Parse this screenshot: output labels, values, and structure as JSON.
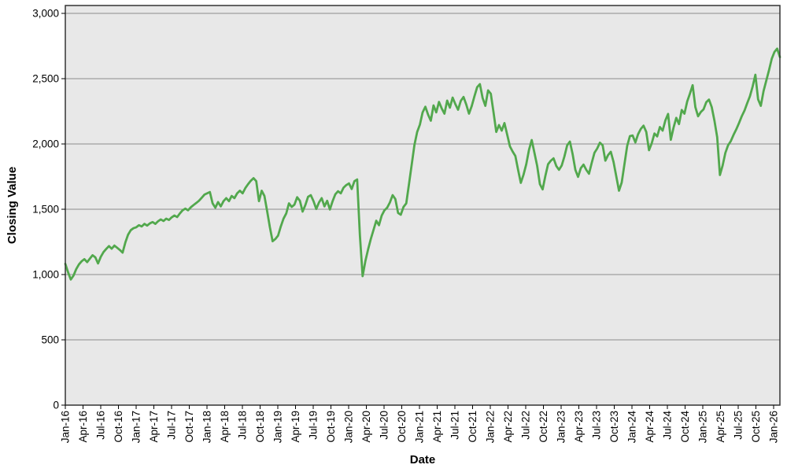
{
  "chart_data": {
    "type": "line",
    "title": "",
    "xlabel": "Date",
    "ylabel": "Closing Value",
    "series_name": "Closing Value",
    "line_color": "#52a84d",
    "plot_bg_color": "#e8e8e8",
    "gridline_color": "#8c8c8c",
    "border_color": "#333333",
    "grid": "horizontal-only",
    "legend": "none",
    "ylim": [
      0,
      3000
    ],
    "y_ticks": [
      0,
      500,
      1000,
      1500,
      2000,
      2500,
      3000
    ],
    "y_tick_labels": [
      "0",
      "500",
      "1,000",
      "1,500",
      "2,000",
      "2,500",
      "3,000"
    ],
    "x_tick_labels": [
      "Jan-16",
      "Apr-16",
      "Jul-16",
      "Oct-16",
      "Jan-17",
      "Apr-17",
      "Jul-17",
      "Oct-17",
      "Jan-18",
      "Apr-18",
      "Jul-18",
      "Oct-18",
      "Jan-19",
      "Apr-19",
      "Jul-19",
      "Oct-19",
      "Jan-20",
      "Apr-20",
      "Jul-20",
      "Oct-20",
      "Jan-21",
      "Apr-21",
      "Jul-21",
      "Oct-21",
      "Jan-22",
      "Apr-22",
      "Jul-22",
      "Oct-22",
      "Jan-23",
      "Apr-23",
      "Jul-23",
      "Oct-23",
      "Jan-24",
      "Apr-24",
      "Jul-24",
      "Oct-24",
      "Jan-25",
      "Apr-25",
      "Jul-25",
      "Oct-25",
      "Jan-26"
    ],
    "x_start": "Jan-2016",
    "x_end": "Feb-2026",
    "points_per_year": 26,
    "sampling": "biweekly-approx",
    "values": [
      1082,
      1018,
      962,
      992,
      1042,
      1078,
      1102,
      1118,
      1095,
      1122,
      1148,
      1132,
      1085,
      1136,
      1172,
      1196,
      1218,
      1198,
      1222,
      1205,
      1188,
      1168,
      1245,
      1305,
      1340,
      1355,
      1362,
      1378,
      1368,
      1388,
      1375,
      1392,
      1402,
      1388,
      1408,
      1422,
      1410,
      1428,
      1418,
      1438,
      1452,
      1440,
      1468,
      1492,
      1505,
      1492,
      1515,
      1532,
      1548,
      1565,
      1588,
      1612,
      1622,
      1632,
      1545,
      1512,
      1555,
      1522,
      1562,
      1585,
      1562,
      1602,
      1585,
      1622,
      1642,
      1622,
      1662,
      1692,
      1718,
      1738,
      1715,
      1562,
      1642,
      1602,
      1485,
      1362,
      1255,
      1272,
      1298,
      1368,
      1428,
      1468,
      1545,
      1518,
      1535,
      1592,
      1565,
      1482,
      1532,
      1595,
      1608,
      1562,
      1502,
      1552,
      1585,
      1522,
      1565,
      1498,
      1562,
      1615,
      1638,
      1622,
      1665,
      1685,
      1698,
      1655,
      1715,
      1728,
      1302,
      988,
      1102,
      1192,
      1272,
      1342,
      1412,
      1378,
      1452,
      1492,
      1512,
      1552,
      1608,
      1578,
      1472,
      1458,
      1518,
      1545,
      1692,
      1842,
      1992,
      2092,
      2148,
      2242,
      2285,
      2225,
      2178,
      2295,
      2242,
      2322,
      2272,
      2232,
      2332,
      2278,
      2355,
      2305,
      2262,
      2330,
      2360,
      2302,
      2232,
      2290,
      2365,
      2435,
      2458,
      2352,
      2292,
      2410,
      2385,
      2242,
      2092,
      2145,
      2102,
      2160,
      2072,
      1982,
      1942,
      1908,
      1802,
      1702,
      1765,
      1845,
      1955,
      2030,
      1932,
      1832,
      1692,
      1652,
      1755,
      1845,
      1872,
      1890,
      1832,
      1802,
      1835,
      1905,
      1990,
      2018,
      1922,
      1802,
      1748,
      1815,
      1842,
      1802,
      1772,
      1855,
      1932,
      1965,
      2010,
      1990,
      1872,
      1915,
      1940,
      1862,
      1752,
      1642,
      1705,
      1845,
      1985,
      2060,
      2065,
      2012,
      2075,
      2115,
      2140,
      2092,
      1952,
      2005,
      2080,
      2058,
      2130,
      2102,
      2180,
      2230,
      2032,
      2125,
      2200,
      2152,
      2260,
      2232,
      2325,
      2385,
      2450,
      2282,
      2212,
      2245,
      2265,
      2320,
      2340,
      2282,
      2178,
      2052,
      1762,
      1835,
      1932,
      1990,
      2022,
      2070,
      2112,
      2160,
      2212,
      2255,
      2312,
      2365,
      2440,
      2530,
      2342,
      2292,
      2405,
      2485,
      2565,
      2652,
      2705,
      2730,
      2665
    ]
  }
}
